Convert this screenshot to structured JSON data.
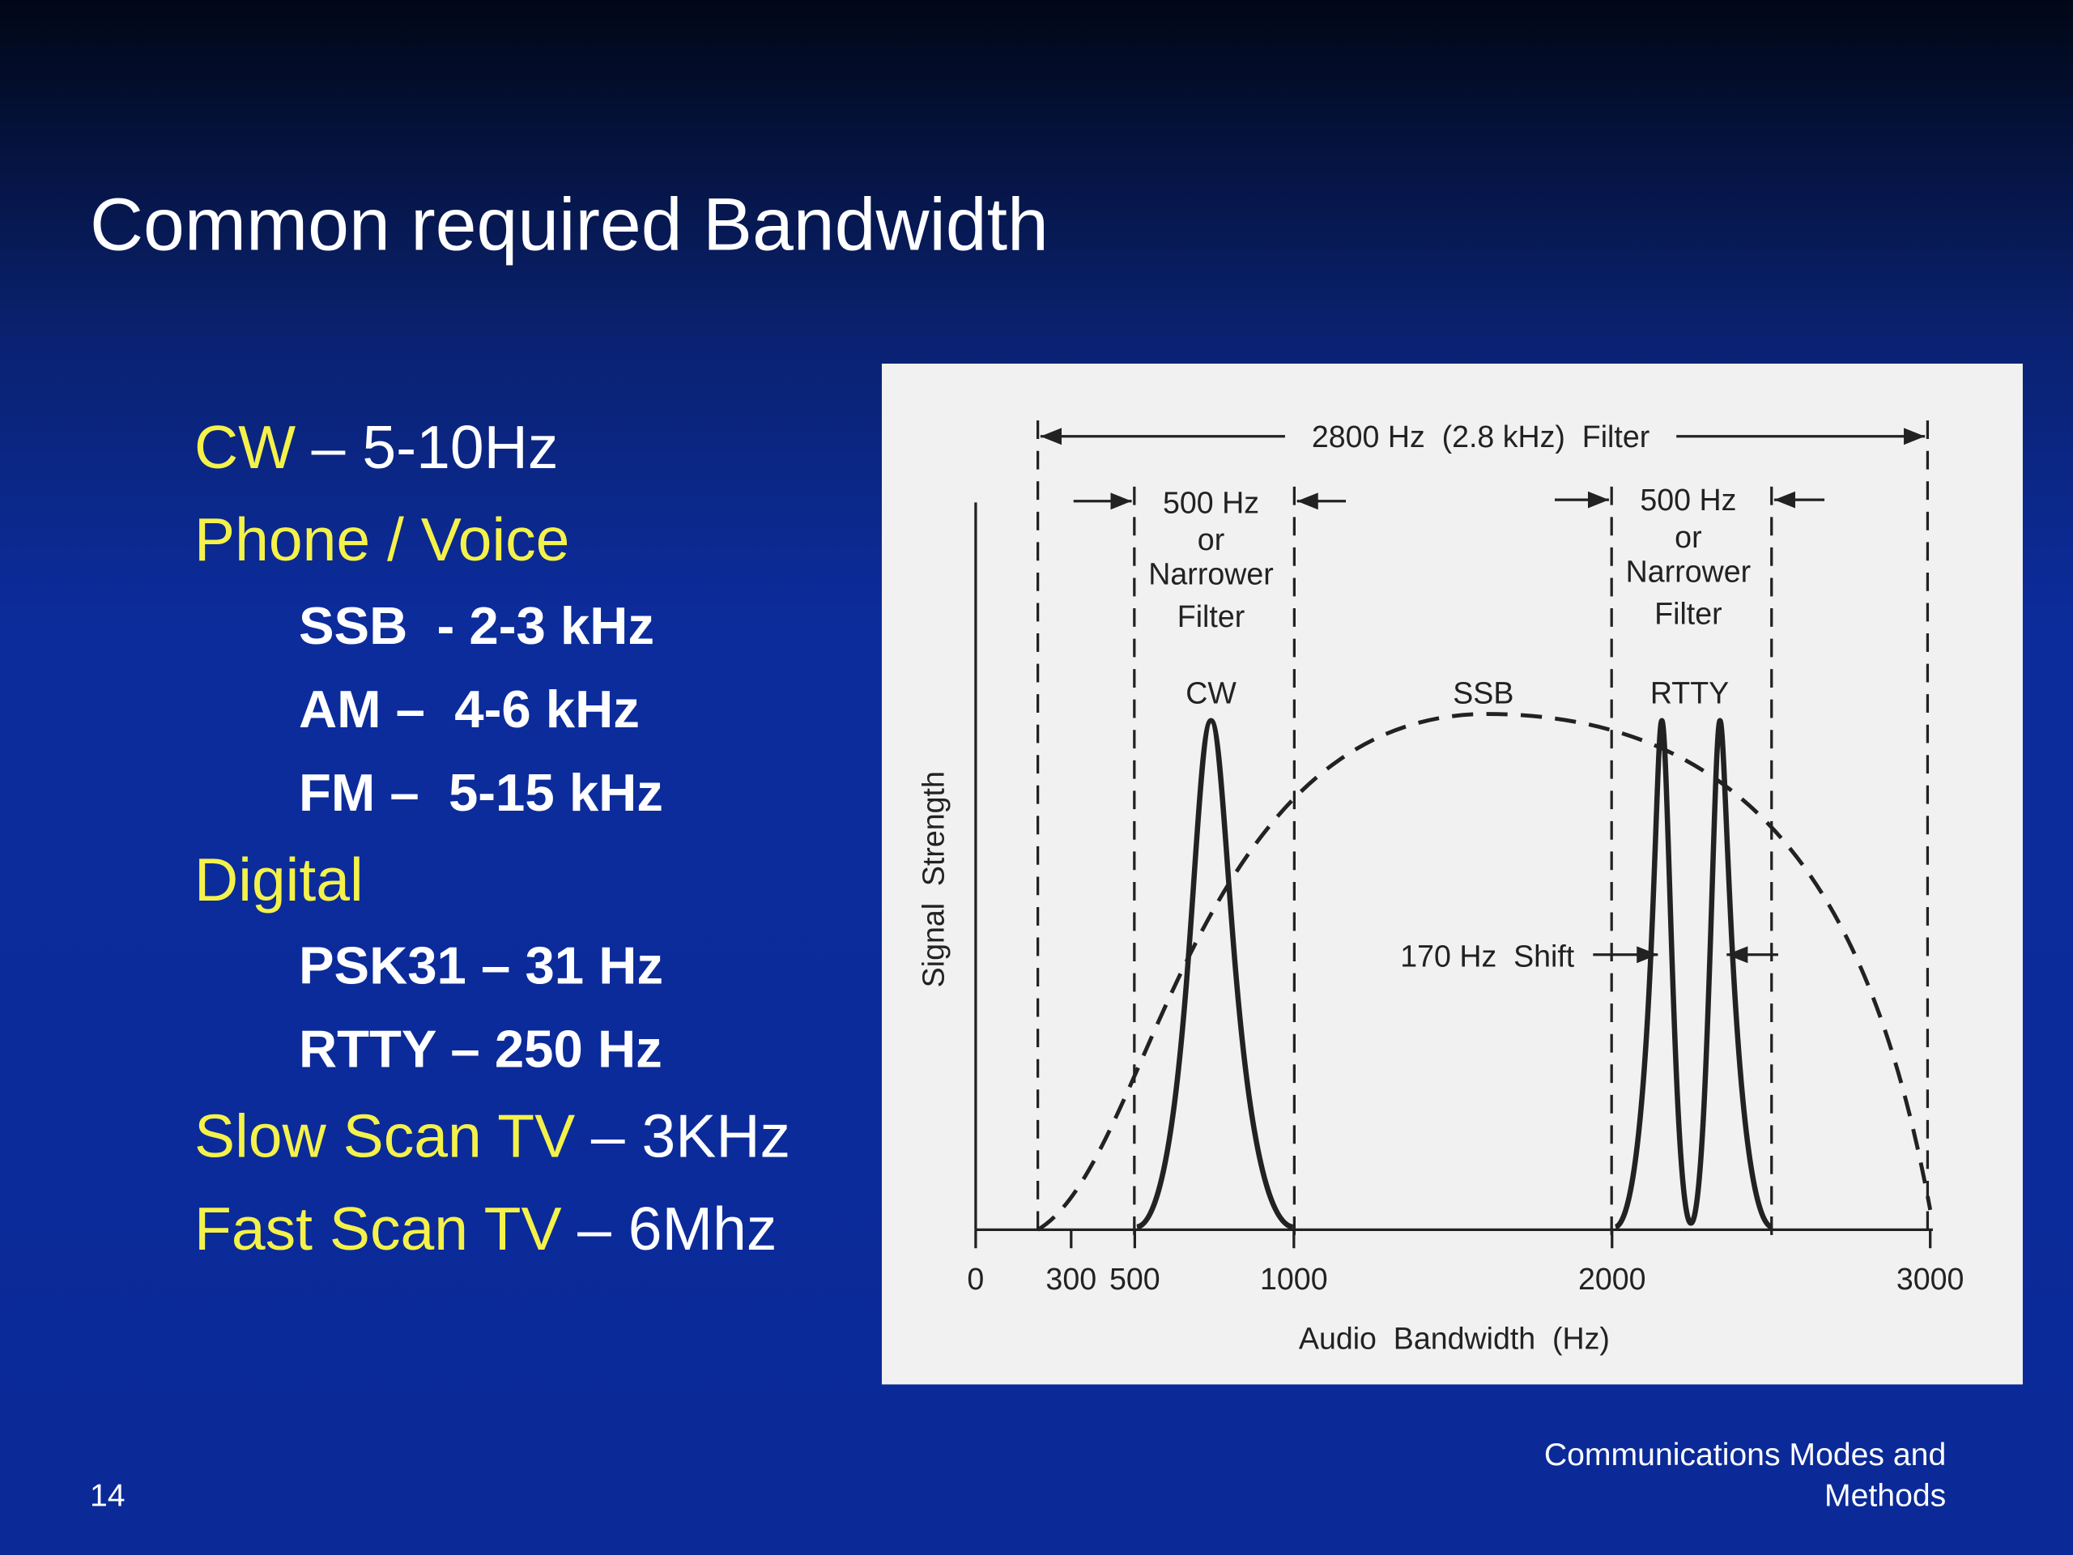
{
  "header": {
    "title": "Common required Bandwidth"
  },
  "bullets": [
    {
      "label": "CW",
      "text": "– 5-10Hz"
    },
    {
      "label": "Phone / Voice",
      "items": [
        "SSB  - 2-3 kHz",
        "AM –  4-6 kHz",
        "FM –  5-15 kHz"
      ]
    },
    {
      "label": "Digital",
      "items": [
        "PSK31 – 31 Hz",
        "RTTY – 250 Hz"
      ]
    },
    {
      "label": "Slow Scan TV",
      "text": "– 3KHz"
    },
    {
      "label": "Fast Scan TV",
      "text": "– 6Mhz"
    }
  ],
  "figure": {
    "filter_label": "2800 Hz  (2.8 kHz)  Filter",
    "narrow_filter_left": [
      "500 Hz",
      "or",
      "Narrower",
      "Filter"
    ],
    "narrow_filter_right": [
      "500 Hz",
      "or",
      "Narrower",
      "Filter"
    ],
    "signals": [
      "CW",
      "SSB",
      "RTTY"
    ],
    "shift_label": "170 Hz  Shift",
    "x_axis_label": "Audio  Bandwidth  (Hz)",
    "y_axis_label": "Signal  Strength",
    "xticks": [
      0,
      300,
      500,
      1000,
      2000,
      3000
    ]
  },
  "footer": {
    "page": "14",
    "title": [
      "Communications Modes and",
      "Methods"
    ]
  }
}
